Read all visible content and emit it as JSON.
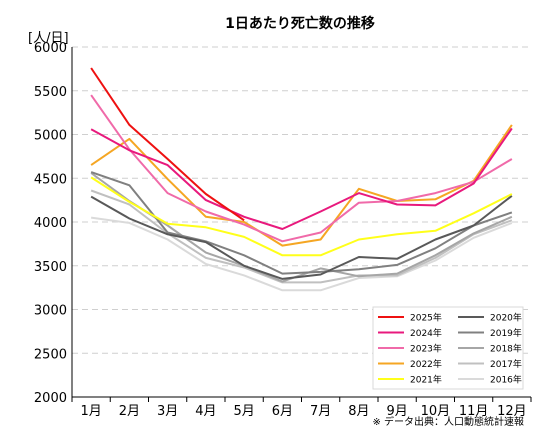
{
  "chart_data": {
    "type": "line",
    "title": "1日あたり死亡数の推移",
    "ylabel": "[人/日]",
    "xlabel": "",
    "ylim": [
      2000,
      6000
    ],
    "yticks": [
      2000,
      2500,
      3000,
      3500,
      4000,
      4500,
      5000,
      5500,
      6000
    ],
    "categories": [
      "1月",
      "2月",
      "3月",
      "4月",
      "5月",
      "6月",
      "7月",
      "8月",
      "9月",
      "10月",
      "11月",
      "12月"
    ],
    "grid": "horizontal dashed",
    "legend_position": "bottom-right",
    "source": "※ データ出典：人口動態統計速報",
    "series": [
      {
        "name": "2025年",
        "color": "#ee1111",
        "values": [
          5760,
          5110,
          4720,
          4320,
          4020,
          null,
          null,
          null,
          null,
          null,
          null,
          null
        ]
      },
      {
        "name": "2024年",
        "color": "#e8197d",
        "values": [
          5060,
          4820,
          4650,
          4250,
          4060,
          3920,
          4120,
          4330,
          4200,
          4190,
          4440,
          5070
        ]
      },
      {
        "name": "2023年",
        "color": "#f06aa9",
        "values": [
          5450,
          4830,
          4330,
          4120,
          3970,
          3780,
          3880,
          4220,
          4240,
          4330,
          4460,
          4720
        ]
      },
      {
        "name": "2022年",
        "color": "#f5a623",
        "values": [
          4650,
          4950,
          4490,
          4060,
          4000,
          3730,
          3800,
          4380,
          4240,
          4260,
          4470,
          5110
        ]
      },
      {
        "name": "2021年",
        "color": "#ffff1a",
        "values": [
          4510,
          4230,
          3980,
          3940,
          3830,
          3620,
          3620,
          3800,
          3860,
          3900,
          4100,
          4320
        ]
      },
      {
        "name": "2020年",
        "color": "#595959",
        "values": [
          4290,
          4040,
          3860,
          3770,
          3500,
          3350,
          3400,
          3600,
          3580,
          3800,
          3960,
          4300
        ]
      },
      {
        "name": "2019年",
        "color": "#808080",
        "values": [
          4570,
          4420,
          3880,
          3780,
          3620,
          3410,
          3430,
          3460,
          3510,
          3700,
          3960,
          4110
        ]
      },
      {
        "name": "2018年",
        "color": "#a6a6a6",
        "values": [
          4560,
          4240,
          3960,
          3650,
          3500,
          3320,
          3470,
          3380,
          3410,
          3620,
          3870,
          4060
        ]
      },
      {
        "name": "2017年",
        "color": "#c0c0c0",
        "values": [
          4360,
          4200,
          3870,
          3590,
          3480,
          3310,
          3310,
          3390,
          3390,
          3590,
          3860,
          4020
        ]
      },
      {
        "name": "2016年",
        "color": "#dadada",
        "values": [
          4050,
          3990,
          3800,
          3520,
          3390,
          3220,
          3220,
          3360,
          3380,
          3560,
          3820,
          3990
        ]
      }
    ]
  }
}
